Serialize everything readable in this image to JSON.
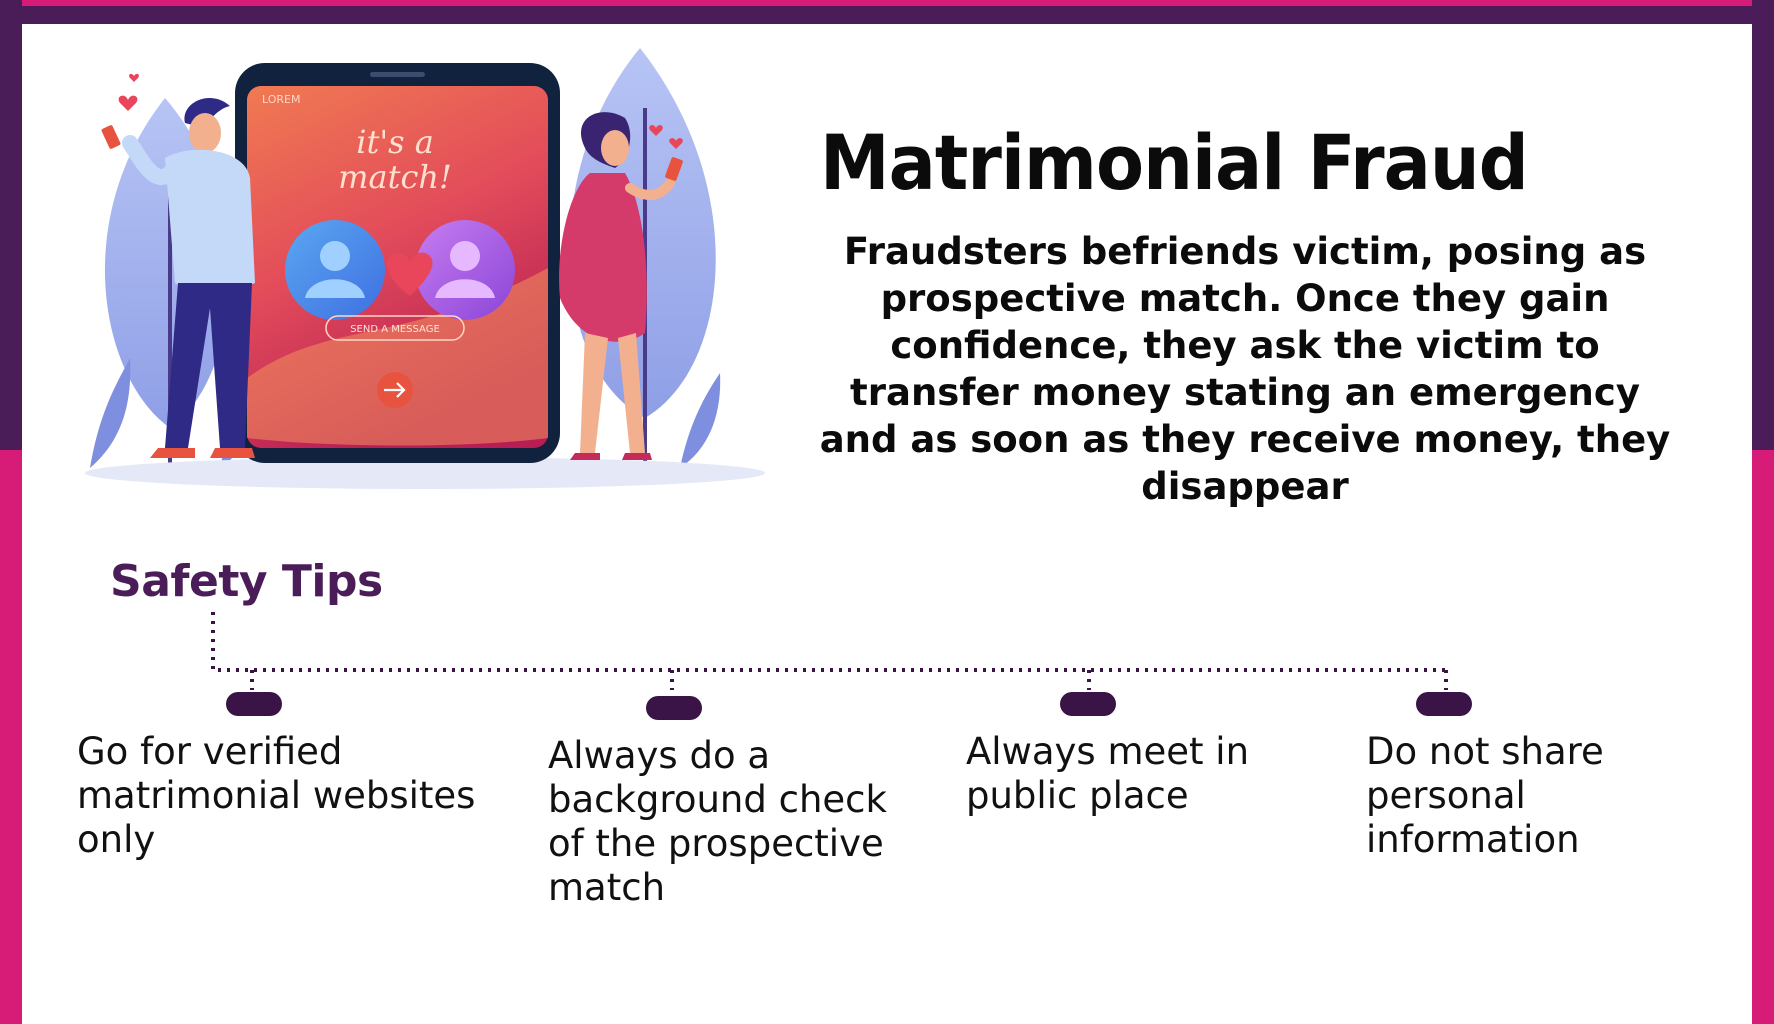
{
  "title": "Matrimonial Fraud",
  "description": "Fraudsters befriends victim, posing as prospective match. Once they gain confidence, they ask the victim to transfer money stating an emergency and as soon as they receive money, they disappear",
  "illustration": {
    "phone_status": "LOREM",
    "match_text_line1": "it's a",
    "match_text_line2": "match!",
    "send_button": "SEND A MESSAGE",
    "icons": [
      "man-figure-icon",
      "woman-figure-icon",
      "heart-icon",
      "arrow-right-icon",
      "user-avatar-icon"
    ]
  },
  "safety_tips": {
    "heading": "Safety Tips",
    "items": [
      "Go for verified matrimonial websites only",
      "Always do a background check of the prospective match",
      "Always meet in public place",
      "Do not share personal information"
    ]
  },
  "colors": {
    "frame_purple": "#4a1d58",
    "frame_pink": "#d61c76",
    "heading_purple": "#4a1d58",
    "bullet": "#3a1446"
  }
}
